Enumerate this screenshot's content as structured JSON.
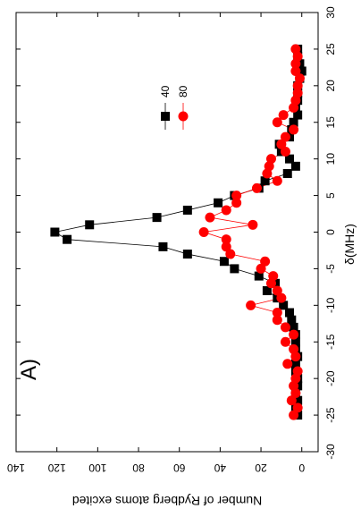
{
  "chart_data": {
    "type": "scatter_line",
    "annotation": "A)",
    "x_label": "δ(MHz)",
    "y_label": "Number of Rydberg atoms excited",
    "x": [
      -25,
      -24,
      -23,
      -22,
      -21,
      -20,
      -19,
      -18,
      -17,
      -16,
      -15,
      -14,
      -13,
      -12,
      -11,
      -10,
      -9,
      -8,
      -7,
      -6,
      -5,
      -4,
      -3,
      -2,
      -1,
      0,
      1,
      2,
      3,
      4,
      5,
      6,
      7,
      8,
      9,
      10,
      11,
      12,
      13,
      14,
      15,
      16,
      17,
      18,
      19,
      20,
      21,
      22,
      23,
      24,
      25
    ],
    "series": [
      {
        "name": "40",
        "color": "#000000",
        "marker": "square",
        "values": [
          2,
          3,
          2,
          3,
          2,
          2,
          3,
          3,
          2,
          3,
          3,
          3,
          4,
          5,
          6,
          9,
          12,
          17,
          13,
          21,
          33,
          38,
          56,
          68,
          115,
          121,
          104,
          71,
          56,
          41,
          33,
          21,
          18,
          7,
          3,
          6,
          10,
          11,
          6,
          5,
          4,
          2,
          3,
          2,
          2,
          2,
          1,
          0,
          1,
          2,
          2
        ]
      },
      {
        "name": "80",
        "color": "#ff0000",
        "marker": "circle",
        "values": [
          4,
          2,
          5,
          3,
          4,
          3,
          2,
          7,
          3,
          4,
          8,
          4,
          8,
          12,
          12,
          25,
          10,
          12,
          15,
          14,
          20,
          18,
          35,
          37,
          37,
          48,
          24,
          45,
          37,
          32,
          32,
          22,
          12,
          17,
          16,
          15,
          8,
          10,
          8,
          4,
          12,
          9,
          4,
          3,
          2,
          2,
          1,
          3,
          3,
          2,
          3
        ]
      }
    ],
    "xlim": [
      -30,
      30
    ],
    "xticks": [
      -30,
      -25,
      -20,
      -15,
      -10,
      -5,
      0,
      5,
      10,
      15,
      20,
      25,
      30
    ],
    "ylim": [
      -8,
      140
    ],
    "yticks": [
      0,
      20,
      40,
      60,
      80,
      100,
      120,
      140
    ]
  }
}
